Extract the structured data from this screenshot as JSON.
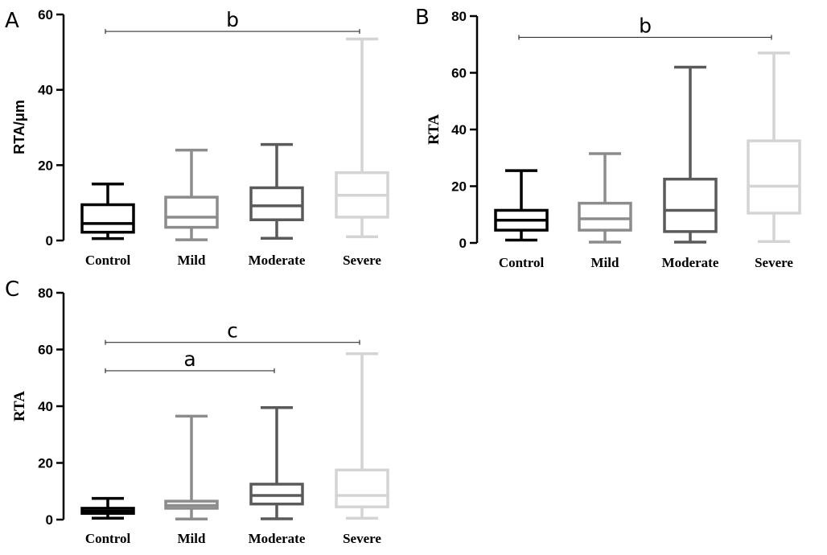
{
  "chart_data": [
    {
      "type": "box",
      "panel": "A",
      "ylabel": "RTA/μm",
      "ylim": [
        0,
        60
      ],
      "yticks": [
        0,
        20,
        40,
        60
      ],
      "categories": [
        "Control",
        "Mild",
        "Moderate",
        "Severe"
      ],
      "colors": [
        "#000000",
        "#8c8c8c",
        "#5a5a5a",
        "#d4d4d4"
      ],
      "boxes": [
        {
          "min": 0.5,
          "q1": 2.2,
          "median": 4.5,
          "q3": 9.5,
          "max": 15
        },
        {
          "min": 0.2,
          "q1": 3.5,
          "median": 6.2,
          "q3": 11.5,
          "max": 24
        },
        {
          "min": 0.6,
          "q1": 5.5,
          "median": 9.2,
          "q3": 14,
          "max": 25.5
        },
        {
          "min": 1,
          "q1": 6.2,
          "median": 12,
          "q3": 18,
          "max": 53.5
        }
      ],
      "significance": [
        {
          "from": "Control",
          "to": "Severe",
          "label": "b",
          "y": 55.5
        }
      ]
    },
    {
      "type": "box",
      "panel": "B",
      "ylabel": "RTA",
      "ylim": [
        0,
        80
      ],
      "yticks": [
        0,
        20,
        40,
        60,
        80
      ],
      "categories": [
        "Control",
        "Mild",
        "Moderate",
        "Severe"
      ],
      "colors": [
        "#000000",
        "#8c8c8c",
        "#5a5a5a",
        "#d4d4d4"
      ],
      "boxes": [
        {
          "min": 1,
          "q1": 4.5,
          "median": 8,
          "q3": 11.5,
          "max": 25.5
        },
        {
          "min": 0.3,
          "q1": 4.5,
          "median": 8.5,
          "q3": 14,
          "max": 31.5
        },
        {
          "min": 0.3,
          "q1": 4,
          "median": 11.5,
          "q3": 22.5,
          "max": 62
        },
        {
          "min": 0.5,
          "q1": 10.5,
          "median": 20,
          "q3": 36,
          "max": 67
        }
      ],
      "significance": [
        {
          "from": "Control",
          "to": "Severe",
          "label": "b",
          "y": 72.5
        }
      ]
    },
    {
      "type": "box",
      "panel": "C",
      "ylabel": "RTA",
      "ylim": [
        0,
        80
      ],
      "yticks": [
        0,
        20,
        40,
        60,
        80
      ],
      "categories": [
        "Control",
        "Mild",
        "Moderate",
        "Severe"
      ],
      "colors": [
        "#000000",
        "#8c8c8c",
        "#5a5a5a",
        "#d4d4d4"
      ],
      "boxes": [
        {
          "min": 0.5,
          "q1": 2.2,
          "median": 3,
          "q3": 4,
          "max": 7.5
        },
        {
          "min": 0.2,
          "q1": 4,
          "median": 5,
          "q3": 6.5,
          "max": 36.5
        },
        {
          "min": 0.3,
          "q1": 5.5,
          "median": 8.5,
          "q3": 12.5,
          "max": 39.5
        },
        {
          "min": 0.5,
          "q1": 4.5,
          "median": 8.5,
          "q3": 17.5,
          "max": 58.5
        }
      ],
      "significance": [
        {
          "from": "Control",
          "to": "Moderate",
          "label": "a",
          "y": 52.5
        },
        {
          "from": "Control",
          "to": "Severe",
          "label": "c",
          "y": 62.5
        }
      ]
    }
  ]
}
